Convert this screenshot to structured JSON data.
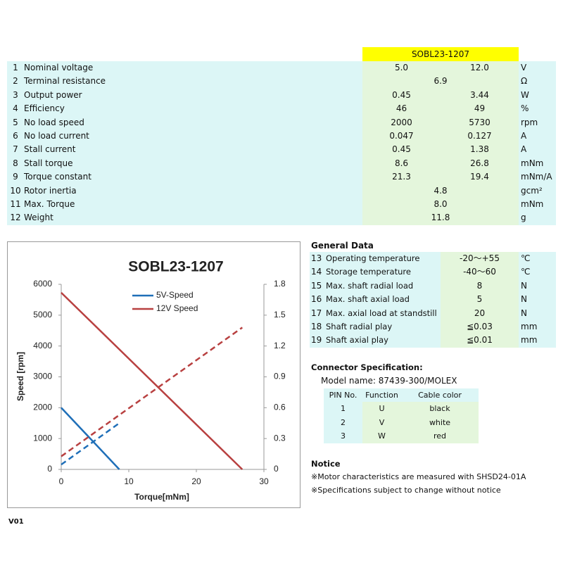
{
  "model": "SOBL23-1207",
  "specs": [
    {
      "no": 1,
      "label": "Nominal voltage",
      "values": [
        "5.0",
        "12.0"
      ],
      "unit": "V"
    },
    {
      "no": 2,
      "label": "Terminal resistance",
      "values": [
        "6.9"
      ],
      "unit": "Ω"
    },
    {
      "no": 3,
      "label": "Output power",
      "values": [
        "0.45",
        "3.44"
      ],
      "unit": "W"
    },
    {
      "no": 4,
      "label": "Efficiency",
      "values": [
        "46",
        "49"
      ],
      "unit": "%"
    },
    {
      "no": 5,
      "label": "No load speed",
      "values": [
        "2000",
        "5730"
      ],
      "unit": "rpm"
    },
    {
      "no": 6,
      "label": "No load current",
      "values": [
        "0.047",
        "0.127"
      ],
      "unit": "A"
    },
    {
      "no": 7,
      "label": "Stall current",
      "values": [
        "0.45",
        "1.38"
      ],
      "unit": "A"
    },
    {
      "no": 8,
      "label": "Stall torque",
      "values": [
        "8.6",
        "26.8"
      ],
      "unit": "mNm"
    },
    {
      "no": 9,
      "label": "Torque constant",
      "values": [
        "21.3",
        "19.4"
      ],
      "unit": "mNm/A"
    },
    {
      "no": 10,
      "label": "Rotor inertia",
      "values": [
        "4.8"
      ],
      "unit": "gcm²"
    },
    {
      "no": 11,
      "label": "Max. Torque",
      "values": [
        "8.0"
      ],
      "unit": "mNm"
    },
    {
      "no": 12,
      "label": "Weight",
      "values": [
        "11.8"
      ],
      "unit": "g"
    }
  ],
  "chart_data": {
    "type": "line",
    "title": "SOBL23-1207",
    "x_label": "Torque[mNm]",
    "y_label": "Speed [rpm]",
    "xlim": [
      0,
      30
    ],
    "xticks": [
      0,
      10,
      20,
      30
    ],
    "ylim": [
      0,
      6000
    ],
    "yticks": [
      0,
      1000,
      2000,
      3000,
      4000,
      5000,
      6000
    ],
    "y2lim": [
      0,
      1.8
    ],
    "y2ticks": [
      0,
      0.3,
      0.6,
      0.9,
      1.2,
      1.5,
      1.8
    ],
    "grid": false,
    "legend": "top",
    "series": [
      {
        "name": "5V-Speed",
        "color": "#1f6fb8",
        "x": [
          0,
          8.6
        ],
        "values": [
          2000,
          0
        ]
      },
      {
        "name": "12V Speed",
        "color": "#b84040",
        "x": [
          0,
          26.8
        ],
        "values": [
          5730,
          0
        ]
      },
      {
        "color": "#1f6fb8",
        "dashed": true,
        "axis": "y2",
        "x": [
          0,
          8.6
        ],
        "values": [
          0.047,
          0.45
        ]
      },
      {
        "color": "#b84040",
        "dashed": true,
        "axis": "y2",
        "x": [
          0,
          26.8
        ],
        "values": [
          0.127,
          1.38
        ]
      }
    ]
  },
  "general": {
    "title": "General Data",
    "rows": [
      {
        "no": 13,
        "label": "Operating temperature",
        "value": "-20～+55",
        "unit": "℃"
      },
      {
        "no": 14,
        "label": "Storage temperature",
        "value": "-40～60",
        "unit": "℃"
      },
      {
        "no": 15,
        "label": "Max. shaft radial load",
        "value": "8",
        "unit": "N"
      },
      {
        "no": 16,
        "label": "Max. shaft axial load",
        "value": "5",
        "unit": "N"
      },
      {
        "no": 17,
        "label": "Max. axial load at standstill",
        "value": "20",
        "unit": "N"
      },
      {
        "no": 18,
        "label": "Shaft radial play",
        "value": "≦0.03",
        "unit": "mm"
      },
      {
        "no": 19,
        "label": "Shaft axial play",
        "value": "≦0.01",
        "unit": "mm"
      }
    ]
  },
  "connector": {
    "title": "Connector Specification:",
    "model": "Model name: 87439-300/MOLEX",
    "header": [
      "PIN No.",
      "Function",
      "Cable color"
    ],
    "rows": [
      [
        "1",
        "U",
        "black"
      ],
      [
        "2",
        "V",
        "white"
      ],
      [
        "3",
        "W",
        "red"
      ]
    ]
  },
  "notice": {
    "title": "Notice",
    "lines": [
      "※Motor characteristics are measured with SHSD24-01A",
      "※Specifications subject to change without notice"
    ]
  },
  "version": "V01"
}
